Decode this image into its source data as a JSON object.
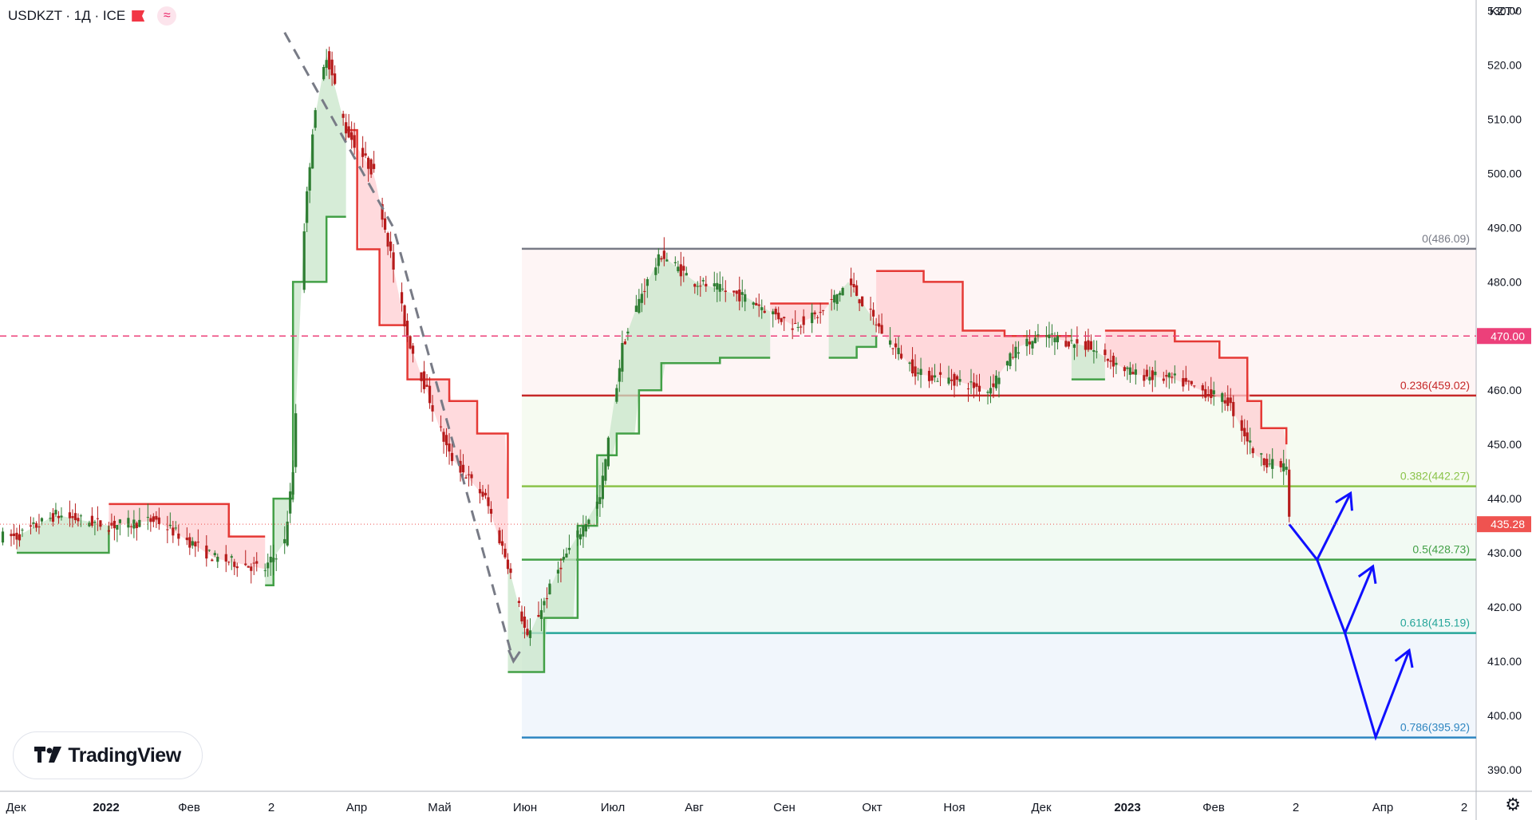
{
  "header": {
    "symbol_line": "USDKZT · 1Д · ICE",
    "flag_icon": "flag-icon",
    "indicator_icon": "wave-icon"
  },
  "currency_button": "KZT˅",
  "settings_icon": "gear-icon",
  "logo": {
    "name": "TradingView",
    "icon": "tradingview-logo-icon"
  },
  "colors": {
    "bull": "#26a69a",
    "bear": "#ef5350",
    "stop_green": "#43a047",
    "stop_red": "#e53935",
    "price_line": "#ec407a",
    "arrow": "#1010ff"
  },
  "chart_data": {
    "type": "candlestick",
    "title": "USDKZT · 1Д · ICE",
    "ylim": [
      386,
      532
    ],
    "y_ticks": [
      "390.00",
      "400.00",
      "410.00",
      "420.00",
      "430.00",
      "440.00",
      "450.00",
      "460.00",
      "470.00",
      "480.00",
      "490.00",
      "500.00",
      "510.00",
      "520.00",
      "530.00"
    ],
    "x_labels": [
      "Дек",
      "2022",
      "Фев",
      "2",
      "Апр",
      "Май",
      "Июн",
      "Июл",
      "Авг",
      "Сен",
      "Окт",
      "Ноя",
      "Дек",
      "2023",
      "Фев",
      "2",
      "Апр",
      "2"
    ],
    "price_path": {
      "x": [
        "2021-12-01",
        "2021-12-15",
        "2022-01-03",
        "2022-01-20",
        "2022-02-10",
        "2022-02-28",
        "2022-03-07",
        "2022-03-10",
        "2022-03-14",
        "2022-03-17",
        "2022-03-22",
        "2022-03-29",
        "2022-04-08",
        "2022-04-20",
        "2022-05-05",
        "2022-05-18",
        "2022-05-26",
        "2022-06-02",
        "2022-06-14",
        "2022-06-28",
        "2022-07-06",
        "2022-07-13",
        "2022-07-20",
        "2022-08-01",
        "2022-08-20",
        "2022-09-05",
        "2022-09-15",
        "2022-09-25",
        "2022-10-08",
        "2022-10-20",
        "2022-11-01",
        "2022-11-14",
        "2022-11-25",
        "2022-12-05",
        "2022-12-20",
        "2023-01-05",
        "2023-01-20",
        "2023-02-08",
        "2023-02-18",
        "2023-02-25",
        "2023-03-01",
        "2023-03-02"
      ],
      "y": [
        433,
        437,
        435,
        436,
        429,
        427,
        432,
        445,
        490,
        508,
        522,
        508,
        500,
        470,
        448,
        440,
        428,
        414,
        428,
        440,
        468,
        478,
        485,
        480,
        477,
        472,
        474,
        480,
        470,
        463,
        462,
        460,
        468,
        470,
        468,
        463,
        462,
        458,
        448,
        446,
        446,
        436
      ]
    },
    "trailing_stop": {
      "bull_segments": [
        {
          "x": [
            "2021-12-01",
            "2022-01-03"
          ],
          "y": [
            430,
            435
          ]
        },
        {
          "x": [
            "2022-02-28",
            "2022-03-03",
            "2022-03-10",
            "2022-03-22",
            "2022-03-29"
          ],
          "y": [
            424,
            440,
            480,
            492,
            492
          ]
        },
        {
          "x": [
            "2022-05-26",
            "2022-06-08",
            "2022-06-20",
            "2022-06-27",
            "2022-07-04",
            "2022-07-12",
            "2022-07-20",
            "2022-08-10",
            "2022-08-28"
          ],
          "y": [
            408,
            418,
            435,
            448,
            452,
            460,
            465,
            466,
            466
          ]
        },
        {
          "x": [
            "2022-09-18",
            "2022-09-28",
            "2022-10-05"
          ],
          "y": [
            466,
            468,
            470
          ]
        },
        {
          "x": [
            "2022-12-14",
            "2022-12-26"
          ],
          "y": [
            462,
            462
          ]
        }
      ],
      "bear_segments": [
        {
          "x": [
            "2022-01-03",
            "2022-02-10",
            "2022-02-15",
            "2022-02-28"
          ],
          "y": [
            439,
            439,
            433,
            433
          ]
        },
        {
          "x": [
            "2022-03-29",
            "2022-04-02",
            "2022-04-10",
            "2022-04-20",
            "2022-05-05",
            "2022-05-15",
            "2022-05-26"
          ],
          "y": [
            508,
            486,
            472,
            462,
            458,
            452,
            440
          ]
        },
        {
          "x": [
            "2022-08-28",
            "2022-09-18"
          ],
          "y": [
            476,
            476
          ]
        },
        {
          "x": [
            "2022-10-05",
            "2022-10-22",
            "2022-11-05",
            "2022-11-20",
            "2022-12-14"
          ],
          "y": [
            482,
            480,
            471,
            470,
            470
          ]
        },
        {
          "x": [
            "2022-12-26",
            "2023-01-20",
            "2023-02-05",
            "2023-02-15",
            "2023-02-20",
            "2023-03-01"
          ],
          "y": [
            471,
            469,
            466,
            458,
            453,
            450
          ]
        }
      ]
    },
    "price_line": {
      "value": 470.0,
      "label": "470.00"
    },
    "last_price": {
      "value": 435.28,
      "label": "435.28"
    },
    "fibonacci": {
      "start": "2022-05-31",
      "end": "2023-04-20",
      "levels": [
        {
          "ratio": 0,
          "price": 486.09,
          "label": "0(486.09)",
          "color": "#787b86"
        },
        {
          "ratio": 0.236,
          "price": 459.02,
          "label": "0.236(459.02)",
          "color": "#c62828"
        },
        {
          "ratio": 0.382,
          "price": 442.27,
          "label": "0.382(442.27)",
          "color": "#8bc34a"
        },
        {
          "ratio": 0.5,
          "price": 428.73,
          "label": "0.5(428.73)",
          "color": "#43a047"
        },
        {
          "ratio": 0.618,
          "price": 415.19,
          "label": "0.618(415.19)",
          "color": "#26a69a"
        },
        {
          "ratio": 0.786,
          "price": 395.92,
          "label": "0.786(395.92)",
          "color": "#2e86c1"
        }
      ]
    },
    "dashed_wave": {
      "x": [
        "2022-03-07",
        "2022-04-15",
        "2022-05-28"
      ],
      "y": [
        526,
        490,
        410
      ]
    },
    "projection_arrows": [
      {
        "x": [
          "2023-03-02",
          "2023-03-12",
          "2023-03-24"
        ],
        "y": [
          435.28,
          428.73,
          441
        ]
      },
      {
        "x": [
          "2023-03-12",
          "2023-03-22",
          "2023-04-01"
        ],
        "y": [
          428.73,
          415.19,
          427.5
        ]
      },
      {
        "x": [
          "2023-03-22",
          "2023-04-02",
          "2023-04-14"
        ],
        "y": [
          415.19,
          396,
          412
        ]
      }
    ]
  }
}
